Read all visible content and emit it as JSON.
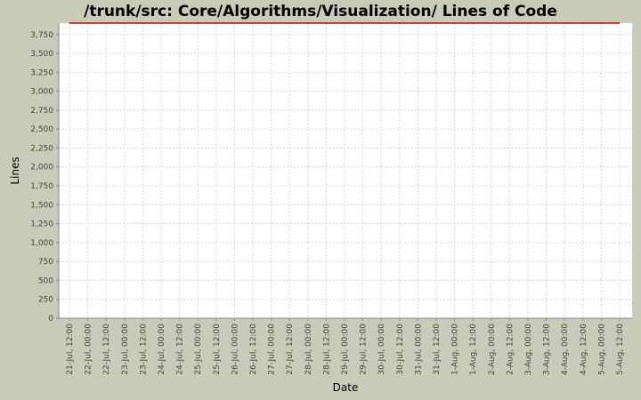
{
  "chart_data": {
    "type": "line",
    "title": "/trunk/src: Core/Algorithms/Visualization/ Lines of Code",
    "xlabel": "Date",
    "ylabel": "Lines",
    "ylim": [
      0,
      3900
    ],
    "yticks": [
      0,
      250,
      500,
      750,
      1000,
      1250,
      1500,
      1750,
      2000,
      2250,
      2500,
      2750,
      3000,
      3250,
      3500,
      3750
    ],
    "ytick_labels": [
      "0",
      "250",
      "500",
      "750",
      "1,000",
      "1,250",
      "1,500",
      "1,750",
      "2,000",
      "2,250",
      "2,500",
      "2,750",
      "3,000",
      "3,250",
      "3,500",
      "3,750"
    ],
    "xtick_labels": [
      "21-Jul, 12:00",
      "22-Jul, 00:00",
      "22-Jul, 12:00",
      "23-Jul, 00:00",
      "23-Jul, 12:00",
      "24-Jul, 00:00",
      "24-Jul, 12:00",
      "25-Jul, 00:00",
      "25-Jul, 12:00",
      "26-Jul, 00:00",
      "26-Jul, 12:00",
      "27-Jul, 00:00",
      "27-Jul, 12:00",
      "28-Jul, 00:00",
      "28-Jul, 12:00",
      "29-Jul, 00:00",
      "29-Jul, 12:00",
      "30-Jul, 00:00",
      "30-Jul, 12:00",
      "31-Jul, 00:00",
      "31-Jul, 12:00",
      "1-Aug, 00:00",
      "1-Aug, 12:00",
      "2-Aug, 00:00",
      "2-Aug, 12:00",
      "3-Aug, 00:00",
      "3-Aug, 12:00",
      "4-Aug, 00:00",
      "4-Aug, 12:00",
      "5-Aug, 00:00",
      "5-Aug, 12:00"
    ],
    "series": [
      {
        "color": "#cc0000",
        "points": [
          [
            "21-Jul, 12:00",
            3900
          ],
          [
            "5-Aug, 12:00",
            3900
          ]
        ]
      }
    ],
    "grid": true,
    "plot_background": "#ffffff",
    "grid_color": "#d4d4d4",
    "background": "#c9cab8"
  }
}
